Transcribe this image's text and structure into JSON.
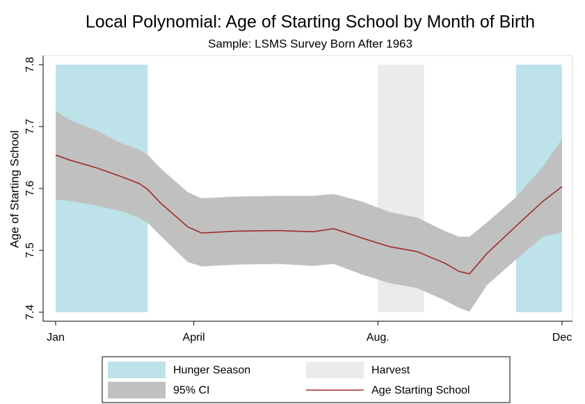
{
  "chart_data": {
    "type": "line",
    "title": "Local Polynomial: Age of Starting School by Month of Birth",
    "subtitle": "Sample: LSMS Survey Born After 1963",
    "y_label": "Age of Starting School",
    "xlim": [
      1,
      12
    ],
    "ylim": [
      7.4,
      7.8
    ],
    "yticks": [
      7.4,
      7.5,
      7.6,
      7.7,
      7.8
    ],
    "xticks": [
      {
        "value": 1,
        "label": "Jan"
      },
      {
        "value": 4,
        "label": "April"
      },
      {
        "value": 8,
        "label": "Aug."
      },
      {
        "value": 12,
        "label": "Dec"
      }
    ],
    "regions": [
      {
        "name": "Hunger Season",
        "color": "#bde2ea",
        "spans": [
          [
            1,
            3
          ],
          [
            11,
            12
          ]
        ]
      },
      {
        "name": "Harvest",
        "color": "#ebebeb",
        "spans": [
          [
            8,
            9
          ]
        ]
      }
    ],
    "x": [
      1,
      1.3,
      1.9,
      2.43,
      2.81,
      2.99,
      3.3,
      3.87,
      4.17,
      4.93,
      5.83,
      6.59,
      7.04,
      7.65,
      8.25,
      8.85,
      9.46,
      9.76,
      9.99,
      10.37,
      10.97,
      11.58,
      12
    ],
    "band": {
      "name": "95% CI",
      "color": "#c0c0c0",
      "upper": [
        7.725,
        7.711,
        7.693,
        7.673,
        7.663,
        7.655,
        7.631,
        7.594,
        7.584,
        7.587,
        7.588,
        7.588,
        7.591,
        7.579,
        7.562,
        7.553,
        7.531,
        7.522,
        7.522,
        7.545,
        7.584,
        7.635,
        7.68
      ],
      "lower": [
        7.582,
        7.58,
        7.572,
        7.563,
        7.553,
        7.545,
        7.522,
        7.481,
        7.474,
        7.477,
        7.478,
        7.475,
        7.478,
        7.461,
        7.447,
        7.439,
        7.419,
        7.407,
        7.401,
        7.444,
        7.483,
        7.522,
        7.529
      ]
    },
    "series": [
      {
        "name": "Age Starting School",
        "color": "#9e2a2b",
        "values": [
          7.654,
          7.646,
          7.633,
          7.619,
          7.608,
          7.599,
          7.575,
          7.538,
          7.528,
          7.531,
          7.532,
          7.53,
          7.535,
          7.52,
          7.506,
          7.498,
          7.479,
          7.466,
          7.462,
          7.495,
          7.537,
          7.579,
          7.603
        ]
      }
    ]
  }
}
